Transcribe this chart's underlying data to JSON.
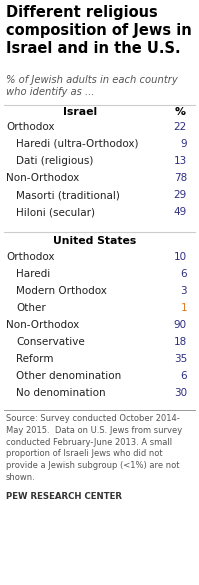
{
  "title": "Different religious\ncomposition of Jews in\nIsrael and in the U.S.",
  "subtitle": "% of Jewish adults in each country\nwho identify as ...",
  "background_color": "#ffffff",
  "title_color": "#000000",
  "israel_header": "Israel",
  "us_header": "United States",
  "percent_header": "%",
  "israel_rows": [
    {
      "label": "Orthodox",
      "value": "22",
      "indent": false,
      "bold": false
    },
    {
      "label": "Haredi (ultra-Orthodox)",
      "value": "9",
      "indent": true,
      "bold": false
    },
    {
      "label": "Dati (religious)",
      "value": "13",
      "indent": true,
      "bold": false
    },
    {
      "label": "Non-Orthodox",
      "value": "78",
      "indent": false,
      "bold": false
    },
    {
      "label": "Masorti (traditional)",
      "value": "29",
      "indent": true,
      "bold": false
    },
    {
      "label": "Hiloni (secular)",
      "value": "49",
      "indent": true,
      "bold": false
    }
  ],
  "us_rows": [
    {
      "label": "Orthodox",
      "value": "10",
      "indent": false,
      "bold": false
    },
    {
      "label": "Haredi",
      "value": "6",
      "indent": true,
      "bold": false
    },
    {
      "label": "Modern Orthodox",
      "value": "3",
      "indent": true,
      "bold": false
    },
    {
      "label": "Other",
      "value": "1",
      "indent": true,
      "bold": false,
      "orange": true
    },
    {
      "label": "Non-Orthodox",
      "value": "90",
      "indent": false,
      "bold": false
    },
    {
      "label": "Conservative",
      "value": "18",
      "indent": true,
      "bold": false
    },
    {
      "label": "Reform",
      "value": "35",
      "indent": true,
      "bold": false
    },
    {
      "label": "Other denomination",
      "value": "6",
      "indent": true,
      "bold": false
    },
    {
      "label": "No denomination",
      "value": "30",
      "indent": true,
      "bold": false
    }
  ],
  "footnote": "Source: Survey conducted October 2014-\nMay 2015.  Data on U.S. Jews from survey\nconducted February-June 2013. A small\nproportion of Israeli Jews who did not\nprovide a Jewish subgroup (<1%) are not\nshown.",
  "footer": "PEW RESEARCH CENTER",
  "value_color_orange": "#e07a27",
  "value_color_normal": "#2e2e82",
  "label_color": "#222222",
  "header_color": "#2e2e82",
  "line_color": "#cccccc",
  "title_fontsize": 10.5,
  "subtitle_fontsize": 7.2,
  "header_fontsize": 7.8,
  "row_fontsize": 7.5,
  "footnote_fontsize": 6.0,
  "footer_fontsize": 6.2
}
